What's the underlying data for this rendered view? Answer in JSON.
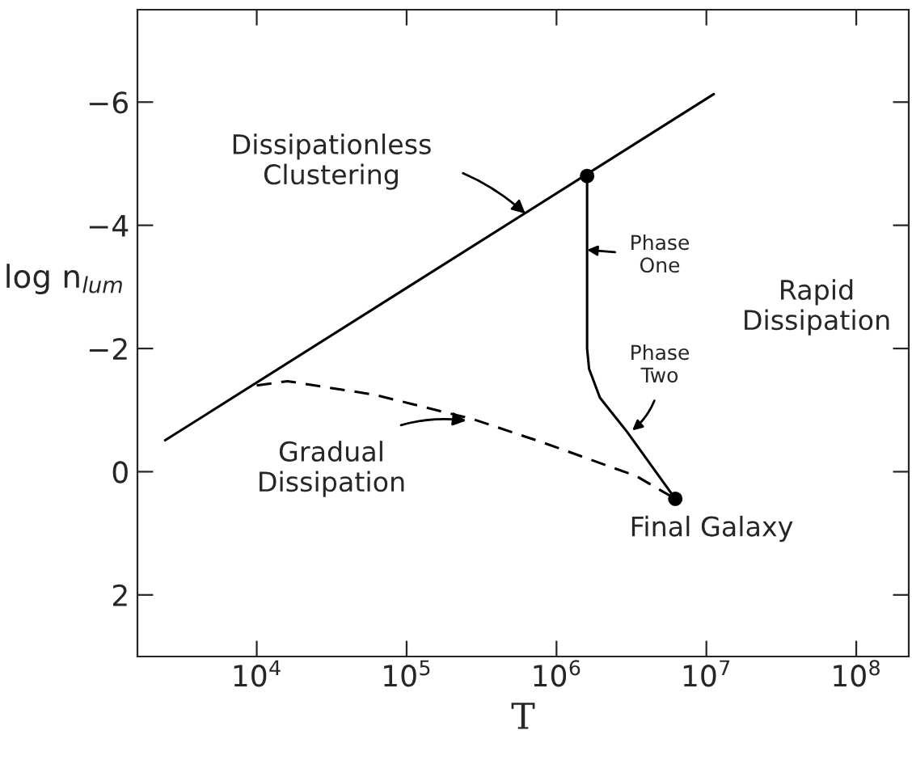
{
  "chart_data": {
    "type": "line",
    "xlabel": "T",
    "ylabel": "log n$_{lum}$",
    "log": "x",
    "xlim": [
      1600,
      224000000
    ],
    "ylim": [
      3,
      -7.5
    ],
    "xticks": [
      {
        "value": 10000,
        "label": "10$^{4}$"
      },
      {
        "value": 100000,
        "label": "10$^{5}$"
      },
      {
        "value": 1000000,
        "label": "10$^{6}$"
      },
      {
        "value": 10000000,
        "label": "10$^{7}$"
      },
      {
        "value": 100000000,
        "label": "10$^{8}$"
      }
    ],
    "yticks": [
      -6,
      -4,
      -2,
      0,
      2
    ],
    "grid": false,
    "legend": false,
    "series": [
      {
        "color": "#000000",
        "line_style": "solid",
        "x": [
          2450,
          11200000
        ],
        "values": [
          -0.51,
          -6.13
        ]
      },
      {
        "color": "#000000",
        "line_style": "solid",
        "x": [
          1600000,
          1600000,
          1600000,
          1650000,
          1950000,
          2950000,
          6200000
        ],
        "values": [
          -4.8,
          -3.0,
          -2.0,
          -1.67,
          -1.2,
          -0.65,
          0.44
        ]
      },
      {
        "color": "#000000",
        "line_style": "dashed",
        "x": [
          10000,
          16000,
          61000,
          280000,
          820000,
          3400000,
          6200000
        ],
        "values": [
          -1.4,
          -1.47,
          -1.25,
          -0.85,
          -0.47,
          0.07,
          0.44
        ]
      },
      {
        "type": "scatter",
        "color": "#000000",
        "marker": "circle",
        "x": [
          1600000,
          6200000
        ],
        "values": [
          -4.8,
          0.44
        ]
      }
    ],
    "annotations": [
      {
        "text": "Dissipationless\nClustering",
        "x": 620000,
        "y": -4.19
      },
      {
        "text": "Phase\nOne",
        "x": 1600000,
        "y": -3.6
      },
      {
        "text": "Phase\nTwo",
        "x": 3200000,
        "y": -0.67
      },
      "Rapid\nDissipation",
      {
        "text": "Gradual\nDissipation",
        "x": 250000,
        "y": -0.83
      },
      {
        "text": "Final Galaxy",
        "x": 6200000,
        "y": 0.44
      }
    ]
  }
}
